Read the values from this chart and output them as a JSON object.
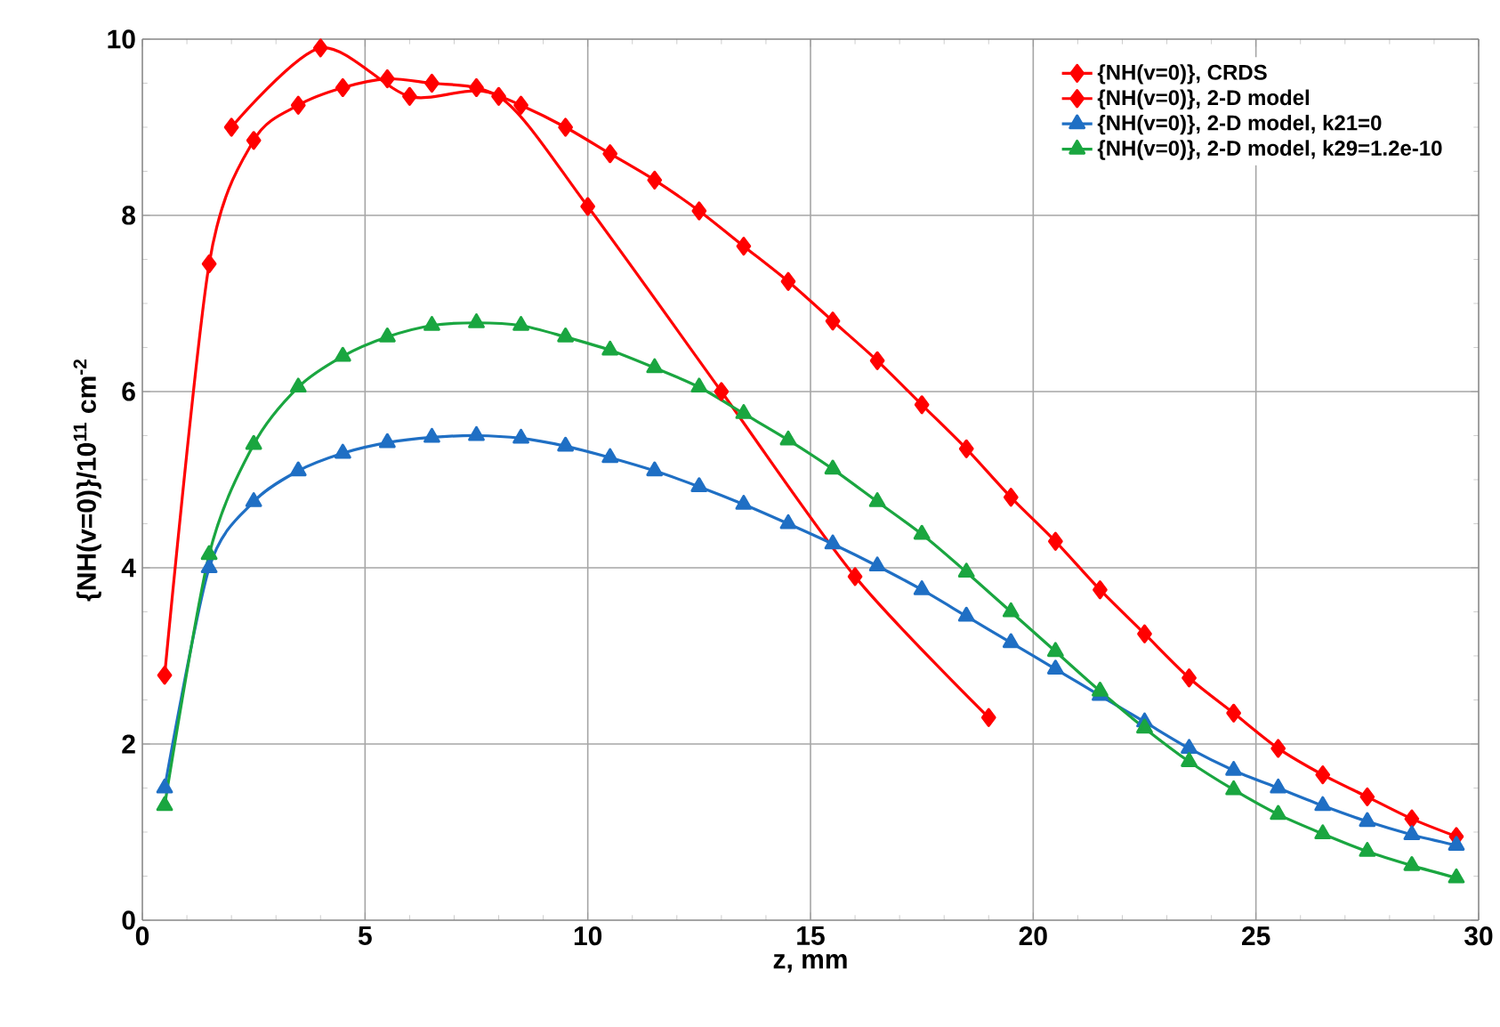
{
  "chart_data": {
    "type": "line",
    "xlabel": "z, mm",
    "ylabel": "{NH(v=0)}/10$^{11}$ cm$^{-2}$",
    "xlim": [
      0,
      30
    ],
    "ylim": [
      0,
      10
    ],
    "xticks": [
      0,
      5,
      10,
      15,
      20,
      25,
      30
    ],
    "yticks": [
      0,
      2,
      4,
      6,
      8,
      10
    ],
    "grid": true,
    "legend": "top right",
    "series": [
      {
        "name": "{NH(v=0)}, CRDS",
        "color": "#ff0000",
        "marker": "diamond",
        "x": [
          2,
          4,
          6,
          8,
          10,
          13,
          16,
          19
        ],
        "values": [
          9.0,
          9.9,
          9.35,
          9.35,
          8.1,
          6.0,
          3.9,
          2.3
        ]
      },
      {
        "name": "{NH(v=0)}, 2-D model",
        "color": "#ff0000",
        "marker": "diamond",
        "x": [
          0.5,
          1.5,
          2.5,
          3.5,
          4.5,
          5.5,
          6.5,
          7.5,
          8.5,
          9.5,
          10.5,
          11.5,
          12.5,
          13.5,
          14.5,
          15.5,
          16.5,
          17.5,
          18.5,
          19.5,
          20.5,
          21.5,
          22.5,
          23.5,
          24.5,
          25.5,
          26.5,
          27.5,
          28.5,
          29.5
        ],
        "values": [
          2.78,
          7.45,
          8.85,
          9.25,
          9.45,
          9.55,
          9.5,
          9.45,
          9.25,
          9.0,
          8.7,
          8.4,
          8.05,
          7.65,
          7.25,
          6.8,
          6.35,
          5.85,
          5.35,
          4.8,
          4.3,
          3.75,
          3.25,
          2.75,
          2.35,
          1.95,
          1.65,
          1.4,
          1.15,
          0.95
        ]
      },
      {
        "name": "{NH(v=0)}, 2-D model, k21=0",
        "color": "#1f6fc4",
        "marker": "triangle",
        "x": [
          0.5,
          1.5,
          2.5,
          3.5,
          4.5,
          5.5,
          6.5,
          7.5,
          8.5,
          9.5,
          10.5,
          11.5,
          12.5,
          13.5,
          14.5,
          15.5,
          16.5,
          17.5,
          18.5,
          19.5,
          20.5,
          21.5,
          22.5,
          23.5,
          24.5,
          25.5,
          26.5,
          27.5,
          28.5,
          29.5
        ],
        "values": [
          1.5,
          4.0,
          4.75,
          5.1,
          5.3,
          5.42,
          5.48,
          5.5,
          5.47,
          5.38,
          5.25,
          5.1,
          4.92,
          4.72,
          4.5,
          4.27,
          4.02,
          3.75,
          3.45,
          3.15,
          2.85,
          2.55,
          2.25,
          1.95,
          1.7,
          1.5,
          1.3,
          1.12,
          0.97,
          0.85
        ]
      },
      {
        "name": "{NH(v=0)}, 2-D model, k29=1.2e-10",
        "color": "#1aa640",
        "marker": "triangle",
        "x": [
          0.5,
          1.5,
          2.5,
          3.5,
          4.5,
          5.5,
          6.5,
          7.5,
          8.5,
          9.5,
          10.5,
          11.5,
          12.5,
          13.5,
          14.5,
          15.5,
          16.5,
          17.5,
          18.5,
          19.5,
          20.5,
          21.5,
          22.5,
          23.5,
          24.5,
          25.5,
          26.5,
          27.5,
          28.5,
          29.5
        ],
        "values": [
          1.3,
          4.15,
          5.4,
          6.05,
          6.4,
          6.62,
          6.75,
          6.78,
          6.75,
          6.62,
          6.47,
          6.27,
          6.05,
          5.75,
          5.45,
          5.12,
          4.75,
          4.38,
          3.95,
          3.5,
          3.05,
          2.6,
          2.18,
          1.8,
          1.48,
          1.2,
          0.98,
          0.78,
          0.62,
          0.48
        ]
      }
    ]
  }
}
